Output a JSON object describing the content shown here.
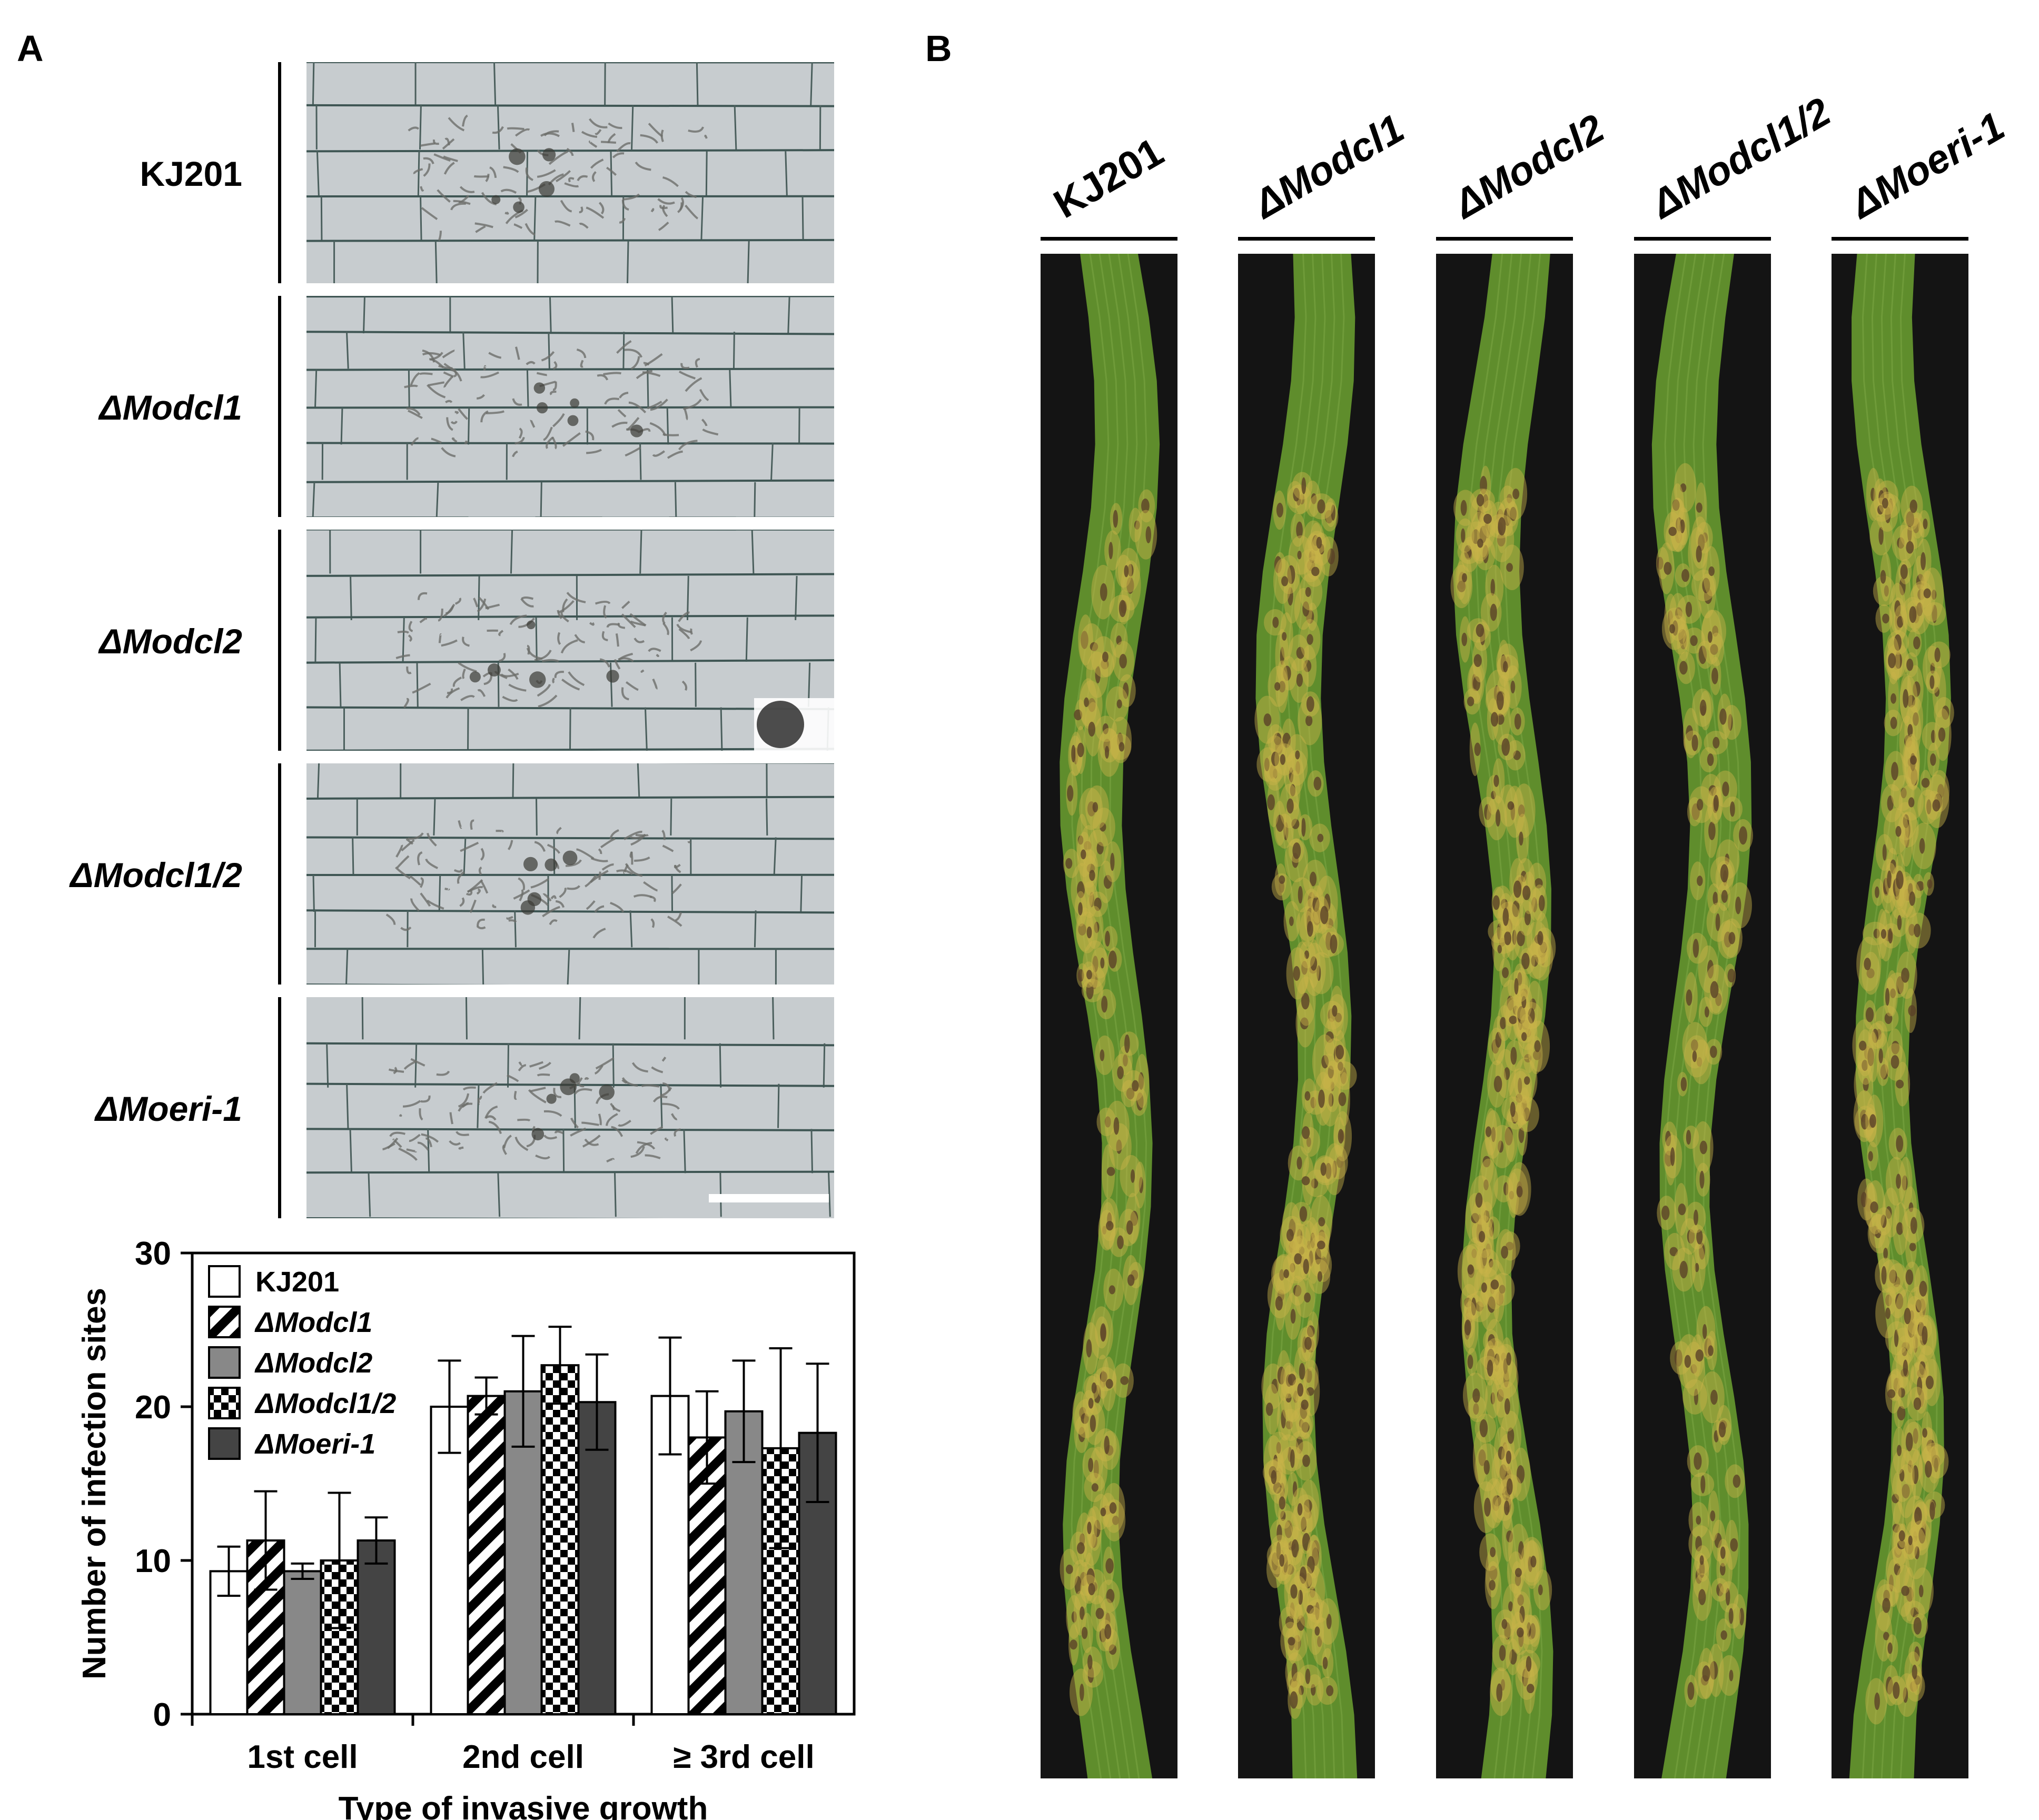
{
  "panel_a": {
    "letter": "A",
    "strains": [
      "KJ201",
      "ΔModcl1",
      "ΔModcl2",
      "ΔModcl1/2",
      "ΔMoeri-1"
    ]
  },
  "panel_b": {
    "letter": "B",
    "strains": [
      "KJ201",
      "ΔModcl1",
      "ΔModcl2",
      "ΔModcl1/2",
      "ΔMoeri-1"
    ]
  },
  "colors": {
    "leaf_green": "#5f8d2c",
    "lesion_yellow": "#c9b44a",
    "lesion_brown": "#5a4128",
    "background_black": "#141414",
    "bar_gray": "#888888",
    "bar_dark": "#444444"
  },
  "chart_data": {
    "type": "bar",
    "categories": [
      "1st cell",
      "2nd cell",
      "≥ 3rd cell"
    ],
    "xlabel": "Type of invasive growth",
    "ylabel": "Number of infection sites",
    "ylim": [
      0,
      30
    ],
    "yticks": [
      0,
      10,
      20,
      30
    ],
    "legend_position": "top-left",
    "series": [
      {
        "name": "KJ201",
        "values": [
          9.3,
          20.0,
          20.7
        ],
        "errors": [
          1.6,
          3.0,
          3.8
        ],
        "fill": "white"
      },
      {
        "name": "ΔModcl1",
        "values": [
          11.3,
          20.7,
          18.0
        ],
        "errors": [
          3.2,
          1.2,
          3.0
        ],
        "fill": "diagonal-stripes"
      },
      {
        "name": "ΔModcl2",
        "values": [
          9.3,
          21.0,
          19.7
        ],
        "errors": [
          0.5,
          3.6,
          3.3
        ],
        "fill": "gray"
      },
      {
        "name": "ΔModcl1/2",
        "values": [
          10.0,
          22.7,
          17.3
        ],
        "errors": [
          4.4,
          2.5,
          6.5
        ],
        "fill": "checkerboard"
      },
      {
        "name": "ΔMoeri-1",
        "values": [
          11.3,
          20.3,
          18.3
        ],
        "errors": [
          1.5,
          3.1,
          4.5
        ],
        "fill": "dark-gray"
      }
    ]
  }
}
